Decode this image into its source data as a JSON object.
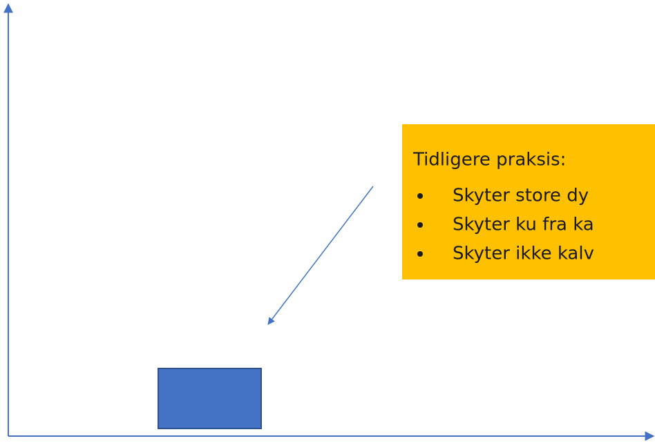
{
  "callout": {
    "title": "Tidligere praksis:",
    "bullets": [
      "Skyter store dy",
      "Skyter ku fra ka",
      "Skyter ikke kalv"
    ]
  }
}
